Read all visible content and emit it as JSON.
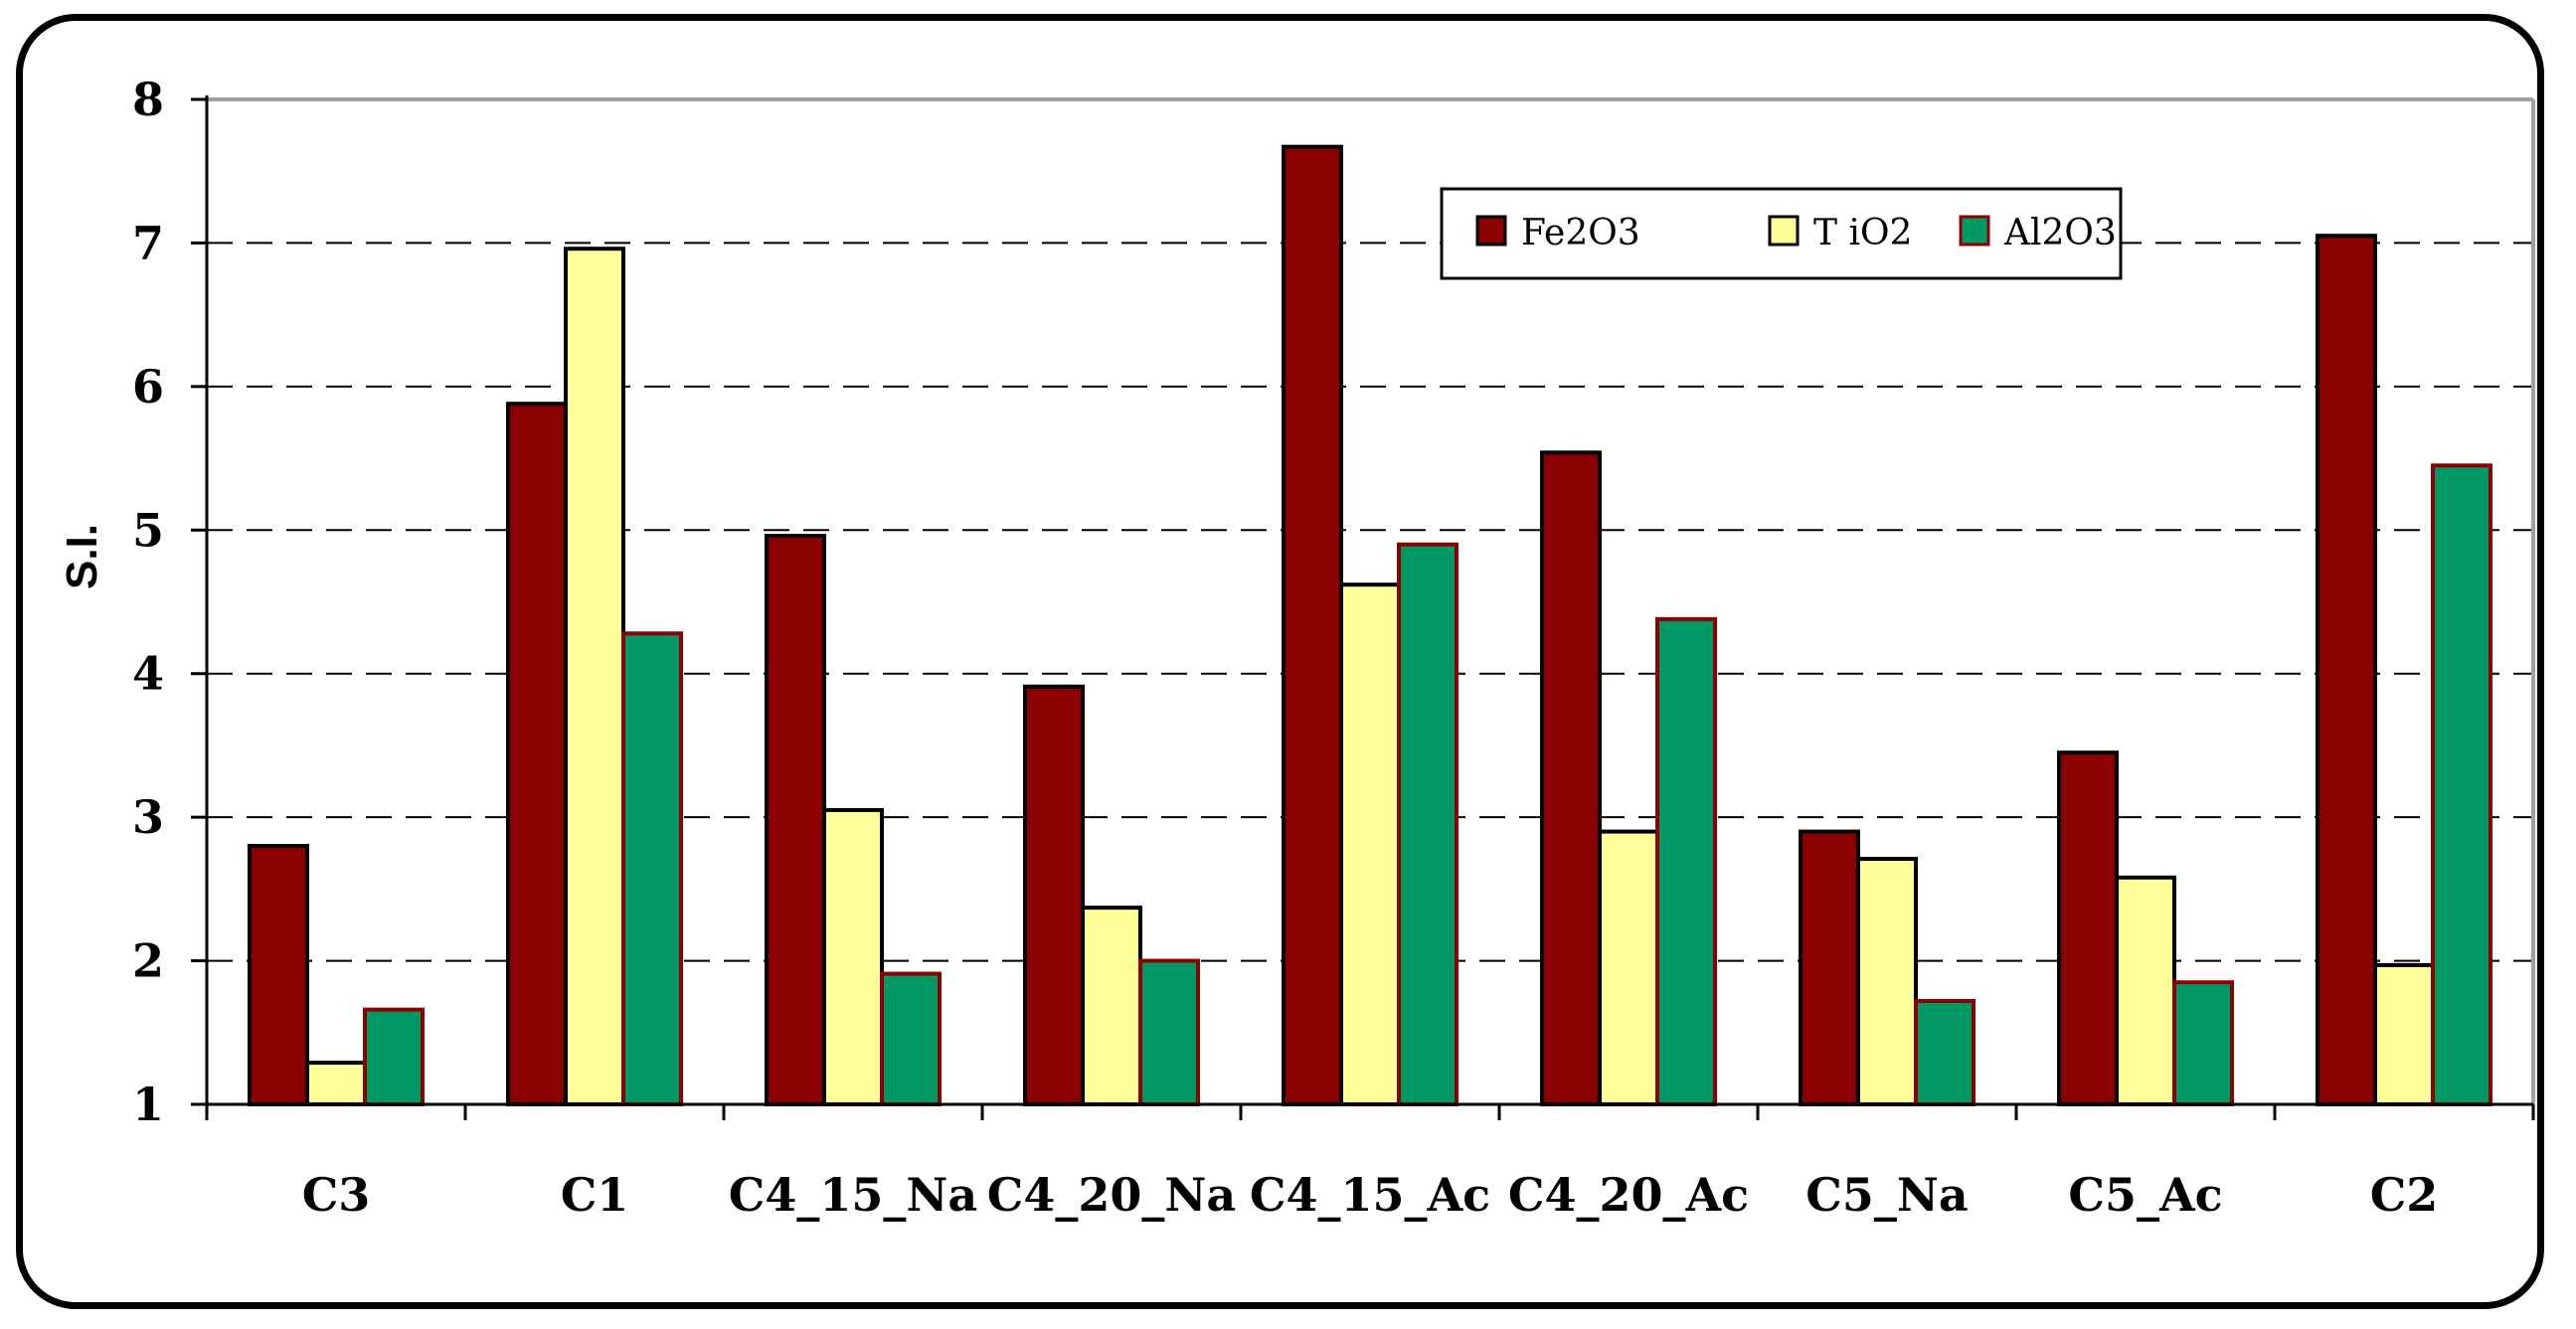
{
  "chart_data": {
    "type": "bar",
    "title": "",
    "xlabel": "",
    "ylabel": "S.I.",
    "ylim": [
      1,
      8
    ],
    "yticks": [
      "1",
      "2",
      "3",
      "4",
      "5",
      "6",
      "7",
      "8"
    ],
    "grid": "horizontal-dashed",
    "legend_position": "top-right",
    "categories": [
      "C3",
      "C1",
      "C4_15_Na",
      "C4_20_Na",
      "C4_15_Ac",
      "C4_20_Ac",
      "C5_Na",
      "C5_Ac",
      "C2"
    ],
    "series": [
      {
        "name": "Fe2O3",
        "color": "#8B0000",
        "values": [
          2.8,
          5.88,
          4.96,
          3.91,
          7.67,
          5.54,
          2.9,
          3.45,
          7.05
        ]
      },
      {
        "name": "T iO2",
        "color": "#FFFF99",
        "values": [
          1.29,
          6.96,
          3.05,
          2.37,
          4.62,
          2.9,
          2.71,
          2.58,
          1.97
        ]
      },
      {
        "name": "Al2O3",
        "color": "#009966",
        "values": [
          1.66,
          4.28,
          1.91,
          2.0,
          4.9,
          4.38,
          1.72,
          1.85,
          5.45
        ]
      }
    ]
  }
}
